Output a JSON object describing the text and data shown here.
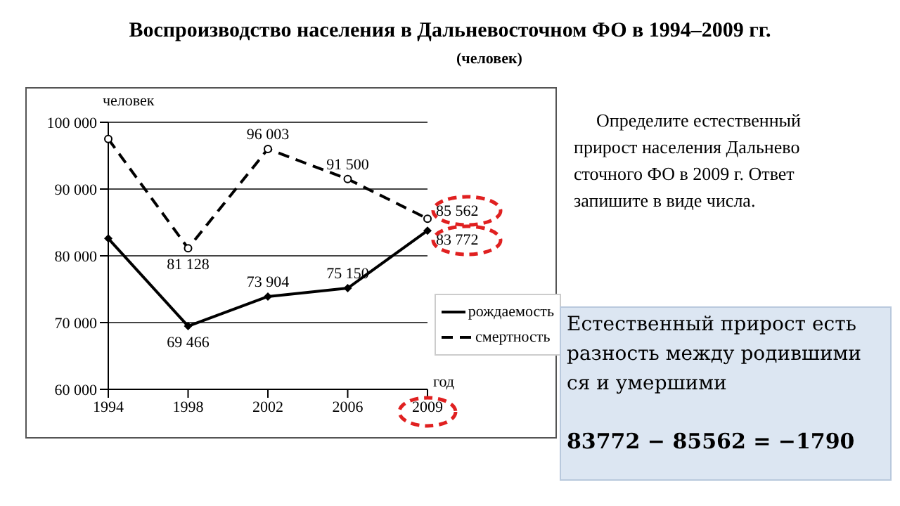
{
  "chart_data": {
    "type": "line",
    "title": "Воспроизводство населения в Дальневосточном ФО в 1994–2009 гг.",
    "subtitle": "(человек)",
    "ylabel": "человек",
    "xlabel": "год",
    "categories": [
      "1994",
      "1998",
      "2002",
      "2006",
      "2009"
    ],
    "series": [
      {
        "name": "рождаемость",
        "color": "#000000",
        "values": [
          82600,
          69466,
          73904,
          75150,
          83772
        ],
        "value_labels": [
          null,
          "69 466",
          "73 904",
          "75 150",
          "83 772"
        ],
        "marker": "diamond",
        "line_style": "solid"
      },
      {
        "name": "смертность",
        "color": "#000000",
        "values": [
          97500,
          81128,
          96003,
          91500,
          85562
        ],
        "value_labels": [
          null,
          "81 128",
          "96 003",
          "91 500",
          "85 562"
        ],
        "marker": "circle",
        "line_style": "dashed"
      }
    ],
    "ylim": [
      60000,
      100000
    ],
    "yticks": [
      {
        "value": 60000,
        "label": "60 000"
      },
      {
        "value": 70000,
        "label": "70 000"
      },
      {
        "value": 80000,
        "label": "80 000"
      },
      {
        "value": 90000,
        "label": "90 000"
      },
      {
        "value": 100000,
        "label": "100 000"
      }
    ],
    "grid": "y",
    "legend": "right",
    "annotations": [
      "Определите естественный прирост населения Дальнево сточного ФО в 2009 г. Ответ запишите в виде числа.",
      "Естественный прирост есть разность между родившими ся и умершими",
      "83772 − 85562 = −1790"
    ]
  }
}
